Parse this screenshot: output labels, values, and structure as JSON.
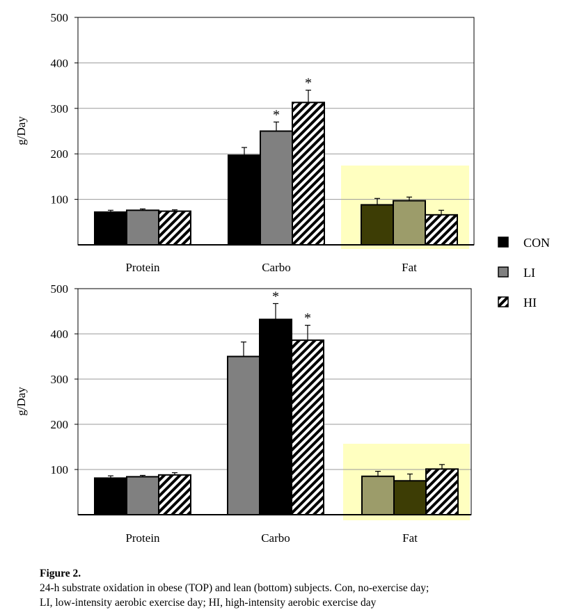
{
  "figure": {
    "caption_title": "Figure 2.",
    "caption_line1": "24-h substrate oxidation in obese (TOP) and lean (bottom) subjects. Con, no-exercise day;",
    "caption_line2": "LI, low-intensity aerobic exercise day; HI, high-intensity aerobic exercise day"
  },
  "legend": [
    {
      "label": "CON",
      "style": "black"
    },
    {
      "label": "LI",
      "style": "gray"
    },
    {
      "label": "HI",
      "style": "hatch"
    }
  ],
  "colors": {
    "black": "#000000",
    "gray": "#808080",
    "highlight": "#ffffc0",
    "fat_dark": "#3d3d05",
    "fat_olive": "#9c9c6a"
  },
  "chart_data": [
    {
      "type": "bar",
      "panel": "top",
      "ylabel": "g/Day",
      "ylim": [
        0,
        500
      ],
      "yticks": [
        100,
        200,
        300,
        400,
        500
      ],
      "grid": true,
      "categories": [
        "Protein",
        "Carbo",
        "Fat"
      ],
      "highlighted_category": "Fat",
      "series": [
        {
          "name": "CON",
          "values": [
            72,
            197,
            88
          ],
          "errors": [
            4,
            17,
            14
          ],
          "star": [
            false,
            false,
            false
          ],
          "styles": [
            "black",
            "black",
            "fat_dark"
          ]
        },
        {
          "name": "LI",
          "values": [
            76,
            250,
            97
          ],
          "errors": [
            3,
            20,
            8
          ],
          "star": [
            false,
            true,
            false
          ],
          "styles": [
            "gray",
            "gray",
            "fat_olive"
          ]
        },
        {
          "name": "HI",
          "values": [
            74,
            313,
            66
          ],
          "errors": [
            3,
            27,
            10
          ],
          "star": [
            false,
            true,
            false
          ],
          "styles": [
            "hatch",
            "hatch",
            "hatch"
          ]
        }
      ],
      "significance_marker": "*"
    },
    {
      "type": "bar",
      "panel": "bottom",
      "ylabel": "g/Day",
      "ylim": [
        0,
        500
      ],
      "yticks": [
        100,
        200,
        300,
        400,
        500
      ],
      "grid": true,
      "categories": [
        "Protein",
        "Carbo",
        "Fat"
      ],
      "highlighted_category": "Fat",
      "series": [
        {
          "name": "CON",
          "values": [
            81,
            350,
            85
          ],
          "errors": [
            5,
            32,
            11
          ],
          "star": [
            false,
            false,
            false
          ],
          "styles": [
            "black",
            "gray",
            "fat_olive"
          ]
        },
        {
          "name": "LI",
          "values": [
            84,
            432,
            75
          ],
          "errors": [
            3,
            35,
            15
          ],
          "star": [
            false,
            true,
            false
          ],
          "styles": [
            "gray",
            "black",
            "fat_dark"
          ]
        },
        {
          "name": "HI",
          "values": [
            88,
            386,
            101
          ],
          "errors": [
            5,
            33,
            10
          ],
          "star": [
            false,
            true,
            false
          ],
          "styles": [
            "hatch",
            "hatch",
            "hatch"
          ]
        }
      ],
      "significance_marker": "*"
    }
  ]
}
